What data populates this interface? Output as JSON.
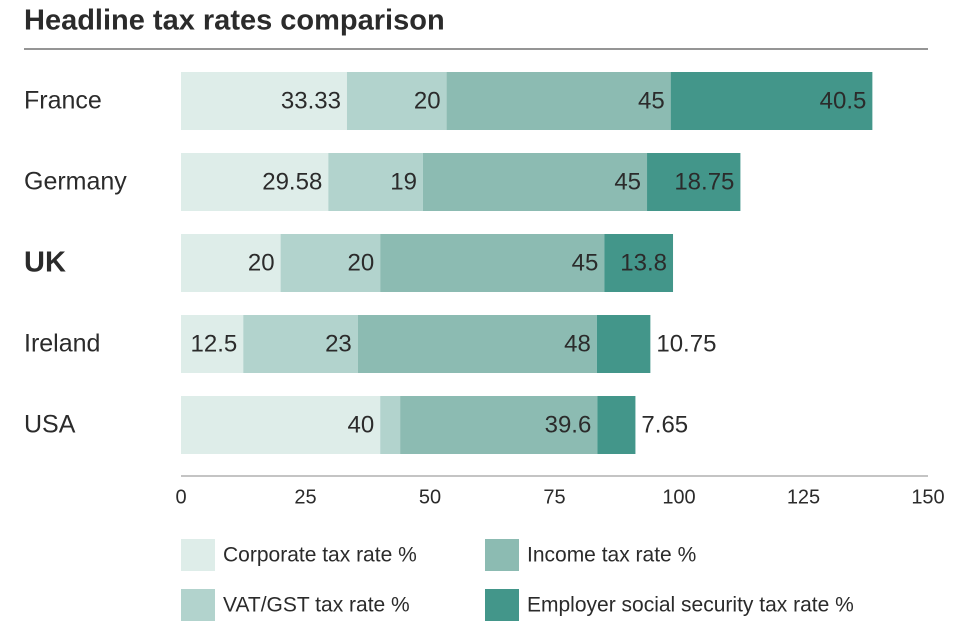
{
  "chart_data": {
    "type": "stacked-barh",
    "title": "Headline tax rates comparison",
    "categories": [
      "France",
      "Germany",
      "UK",
      "Ireland",
      "USA"
    ],
    "highlight": 2,
    "series": [
      {
        "name": "Corporate tax rate %",
        "color": "#deede9",
        "values": [
          33.33,
          29.58,
          20,
          12.5,
          40
        ]
      },
      {
        "name": "VAT/GST tax rate %",
        "color": "#b2d3cd",
        "values": [
          20,
          19,
          20,
          23,
          4
        ]
      },
      {
        "name": "Income tax rate %",
        "color": "#8cbbb2",
        "values": [
          45,
          45,
          45,
          48,
          39.6
        ]
      },
      {
        "name": "Employer social security tax rate %",
        "color": "#43968a",
        "values": [
          40.5,
          18.75,
          13.8,
          10.75,
          7.65
        ]
      }
    ],
    "xlim": [
      0,
      150
    ],
    "xticks": [
      0,
      25,
      50,
      75,
      100,
      125,
      150
    ]
  }
}
